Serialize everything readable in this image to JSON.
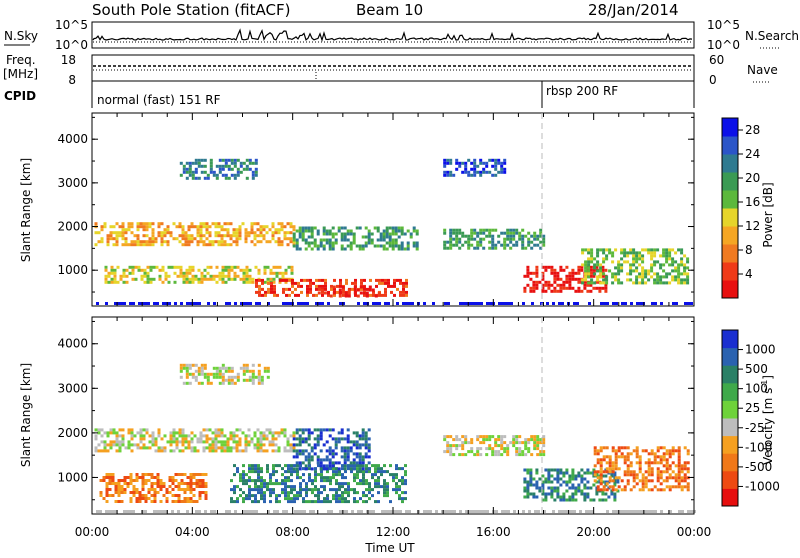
{
  "title": {
    "station": "South Pole Station (fitACF)",
    "beam": "Beam 10",
    "date": "28/Jan/2014"
  },
  "top_panels": {
    "nsky_label": "N.Sky",
    "nsearch_label": "N.Search",
    "nsky_ticks": [
      "10^5",
      "10^0"
    ],
    "nsearch_ticks": [
      "10^5",
      "10^0"
    ],
    "freq_label": "Freq.",
    "freq_unit": "[MHz]",
    "freq_ticks": [
      "18",
      "8"
    ],
    "nave_label": "Nave",
    "nave_ticks": [
      "60",
      "0"
    ],
    "cpid_label": "CPID",
    "cpid_segments": [
      {
        "label": "normal (fast) 151 RF",
        "start_hour": 0
      },
      {
        "label": "rbsp 200 RF",
        "start_hour": 18
      }
    ]
  },
  "chart_data": [
    {
      "type": "heatmap",
      "panel": "power",
      "xlabel": "",
      "ylabel": "Slant Range [km]",
      "xlim": [
        0,
        24
      ],
      "ylim": [
        180,
        4600
      ],
      "yticks": [
        1000,
        2000,
        3000,
        4000
      ],
      "colorbar": {
        "label": "Power [dB]",
        "ticks": [
          "4",
          "8",
          "12",
          "16",
          "20",
          "24",
          "28"
        ],
        "colors": [
          "#0b10e8",
          "#2b55c8",
          "#2f7a90",
          "#3a9a54",
          "#5cb83c",
          "#e6d52a",
          "#f5a623",
          "#f07a20",
          "#ef3a18",
          "#e81010"
        ]
      },
      "echo_regions": [
        {
          "t": [
            3.5,
            6.5
          ],
          "r": [
            3100,
            3550
          ],
          "level": 2
        },
        {
          "t": [
            0.1,
            8
          ],
          "r": [
            1600,
            2100
          ],
          "level": 6
        },
        {
          "t": [
            8,
            13
          ],
          "r": [
            1500,
            2000
          ],
          "level": 3
        },
        {
          "t": [
            0.5,
            8
          ],
          "r": [
            700,
            1100
          ],
          "level": 5
        },
        {
          "t": [
            6.5,
            12.5
          ],
          "r": [
            450,
            800
          ],
          "level": 8
        },
        {
          "t": [
            9,
            11.5
          ],
          "r": [
            400,
            650
          ],
          "level": 9
        },
        {
          "t": [
            14,
            18
          ],
          "r": [
            1500,
            1950
          ],
          "level": 3
        },
        {
          "t": [
            14,
            16.5
          ],
          "r": [
            3200,
            3550
          ],
          "level": 1
        },
        {
          "t": [
            17.2,
            20.5
          ],
          "r": [
            500,
            1100
          ],
          "level": 9
        },
        {
          "t": [
            19.5,
            23.8
          ],
          "r": [
            700,
            1500
          ],
          "level": 4
        }
      ]
    },
    {
      "type": "heatmap",
      "panel": "velocity",
      "xlabel": "Time UT",
      "ylabel": "Slant Range [km]",
      "xlim": [
        0,
        24
      ],
      "ylim": [
        180,
        4600
      ],
      "xticks": [
        "00:00",
        "04:00",
        "08:00",
        "12:00",
        "16:00",
        "20:00",
        "00:00"
      ],
      "yticks": [
        1000,
        2000,
        3000,
        4000
      ],
      "colorbar": {
        "label": "Velocity [m s",
        "label_exp": "-1",
        "label_end": "]",
        "ticks": [
          "1000",
          "500",
          "100",
          "25",
          "-25",
          "-100",
          "-500",
          "-1000"
        ],
        "colors": [
          "#1a2fd0",
          "#2a62b0",
          "#2a8066",
          "#3fa94a",
          "#6ed23a",
          "#bdbdbd",
          "#f5a020",
          "#f07818",
          "#ee4a12",
          "#e60e0e"
        ]
      },
      "echo_regions": [
        {
          "t": [
            3.5,
            7
          ],
          "r": [
            3100,
            3550
          ],
          "level": 5
        },
        {
          "t": [
            0.1,
            8
          ],
          "r": [
            1600,
            2100
          ],
          "level": 5
        },
        {
          "t": [
            0.3,
            4.5
          ],
          "r": [
            450,
            1100
          ],
          "level": 7
        },
        {
          "t": [
            5.5,
            12.5
          ],
          "r": [
            450,
            1300
          ],
          "level": 2
        },
        {
          "t": [
            8,
            11
          ],
          "r": [
            1200,
            2100
          ],
          "level": 1
        },
        {
          "t": [
            14,
            18
          ],
          "r": [
            1500,
            1950
          ],
          "level": 5
        },
        {
          "t": [
            17.2,
            21
          ],
          "r": [
            500,
            1200
          ],
          "level": 2
        },
        {
          "t": [
            20,
            23.8
          ],
          "r": [
            700,
            1700
          ],
          "level": 7
        }
      ]
    }
  ]
}
